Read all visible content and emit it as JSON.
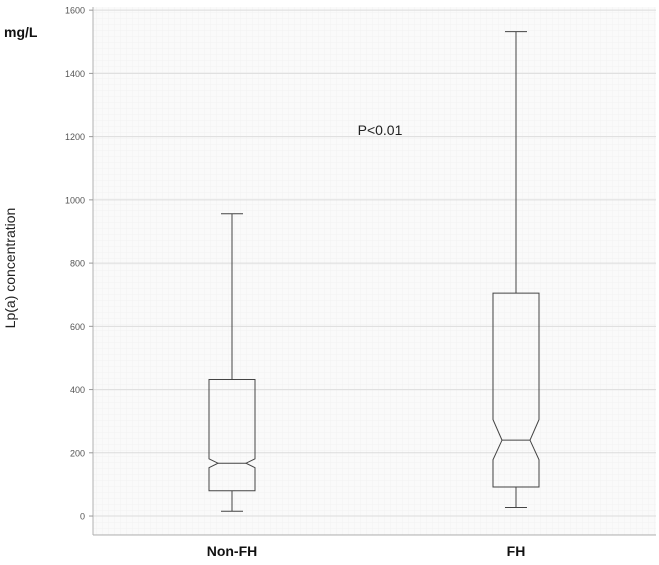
{
  "chart_data": {
    "type": "boxplot",
    "unit_label": "mg/L",
    "ylabel": "Lp(a) concentration",
    "annotation": "P<0.01",
    "ylim": [
      -60,
      1610
    ],
    "yticks": [
      0,
      200,
      400,
      600,
      800,
      1000,
      1200,
      1400,
      1600
    ],
    "grid": true,
    "categories": [
      "Non-FH",
      "FH"
    ],
    "boxes": [
      {
        "category": "Non-FH",
        "whisker_low": 15,
        "q1": 80,
        "median": 167,
        "q3": 432,
        "whisker_high": 956,
        "notch_low": 153,
        "notch_high": 181
      },
      {
        "category": "FH",
        "whisker_low": 27,
        "q1": 92,
        "median": 240,
        "q3": 705,
        "whisker_high": 1532,
        "notch_low": 178,
        "notch_high": 305
      }
    ]
  }
}
